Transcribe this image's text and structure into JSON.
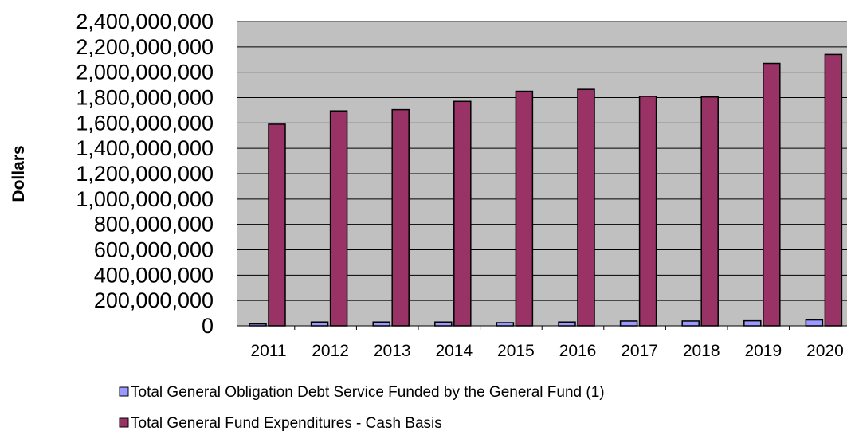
{
  "chart_data": {
    "type": "bar",
    "title": "",
    "xlabel": "",
    "ylabel": "Dollars",
    "categories": [
      "2011",
      "2012",
      "2013",
      "2014",
      "2015",
      "2016",
      "2017",
      "2018",
      "2019",
      "2020"
    ],
    "yticks": [
      "0",
      "200,000,000",
      "400,000,000",
      "600,000,000",
      "800,000,000",
      "1,000,000,000",
      "1,200,000,000",
      "1,400,000,000",
      "1,600,000,000",
      "1,800,000,000",
      "2,000,000,000",
      "2,200,000,000",
      "2,400,000,000"
    ],
    "ylim": [
      0,
      2400000000
    ],
    "grid": true,
    "legend_position": "bottom",
    "series": [
      {
        "name": "Total General Obligation Debt Service Funded by the General Fund (1)",
        "color": "#9999ff",
        "values": [
          15000000,
          30000000,
          30000000,
          30000000,
          25000000,
          30000000,
          38000000,
          38000000,
          40000000,
          47000000
        ]
      },
      {
        "name": "Total General Fund Expenditures - Cash Basis",
        "color": "#993366",
        "values": [
          1590000000,
          1695000000,
          1705000000,
          1770000000,
          1850000000,
          1865000000,
          1810000000,
          1805000000,
          2070000000,
          2140000000
        ]
      }
    ],
    "plot_background": "#c0c0c0"
  }
}
